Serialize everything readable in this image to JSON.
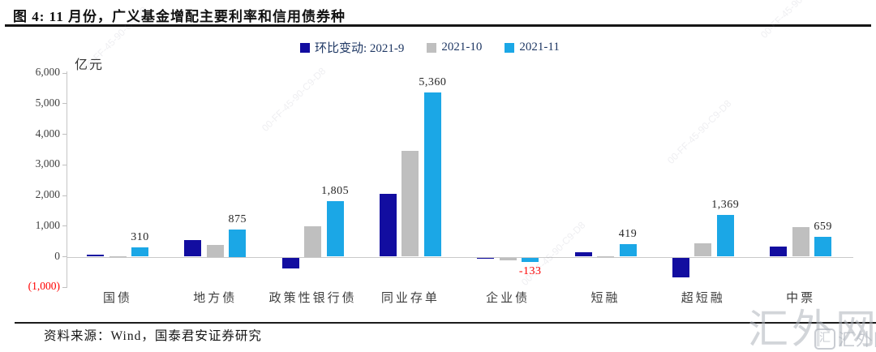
{
  "header": {
    "title": "图 4:  11 月份，广义基金增配主要利率和信用债券种"
  },
  "legend": {
    "items": [
      {
        "label": "环比变动: 2021-9",
        "color": "#120DA0"
      },
      {
        "label": "2021-10",
        "color": "#BFBFBF"
      },
      {
        "label": "2021-11",
        "color": "#1BA7E6"
      }
    ]
  },
  "chart_data": {
    "type": "bar",
    "title": "11 月份，广义基金增配主要利率和信用债券种",
    "unit_label": "亿元",
    "categories": [
      "国债",
      "地方债",
      "政策性银行债",
      "同业存单",
      "企业债",
      "短融",
      "超短融",
      "中票"
    ],
    "series": [
      {
        "name": "环比变动: 2021-9",
        "color": "#120DA0",
        "values": [
          60,
          540,
          -350,
          2040,
          -30,
          150,
          -640,
          340
        ]
      },
      {
        "name": "2021-10",
        "color": "#BFBFBF",
        "values": [
          15,
          375,
          1000,
          3470,
          -80,
          10,
          430,
          975
        ]
      },
      {
        "name": "2021-11",
        "color": "#1BA7E6",
        "values": [
          310,
          875,
          1805,
          5360,
          -133,
          419,
          1369,
          659
        ]
      }
    ],
    "labeled_series": "2021-11",
    "data_labels": [
      "310",
      "875",
      "1,805",
      "5,360",
      "-133",
      "419",
      "1,369",
      "659"
    ],
    "ylim": [
      -1000,
      6000
    ],
    "yticks": [
      "6,000",
      "5,000",
      "4,000",
      "3,000",
      "2,000",
      "1,000",
      "0",
      "(1,000)"
    ],
    "ytick_values": [
      6000,
      5000,
      4000,
      3000,
      2000,
      1000,
      0,
      -1000
    ],
    "negative_label_color": "#FF0000",
    "grid": false,
    "legend_position": "top"
  },
  "footer": {
    "source": "资料来源：Wind，国泰君安证券研究"
  },
  "watermark": {
    "main": "汇外网",
    "logo_icon": "汇",
    "logo_text": "汇外网",
    "diagonal": "00-FF-45-90-C9-D8"
  }
}
